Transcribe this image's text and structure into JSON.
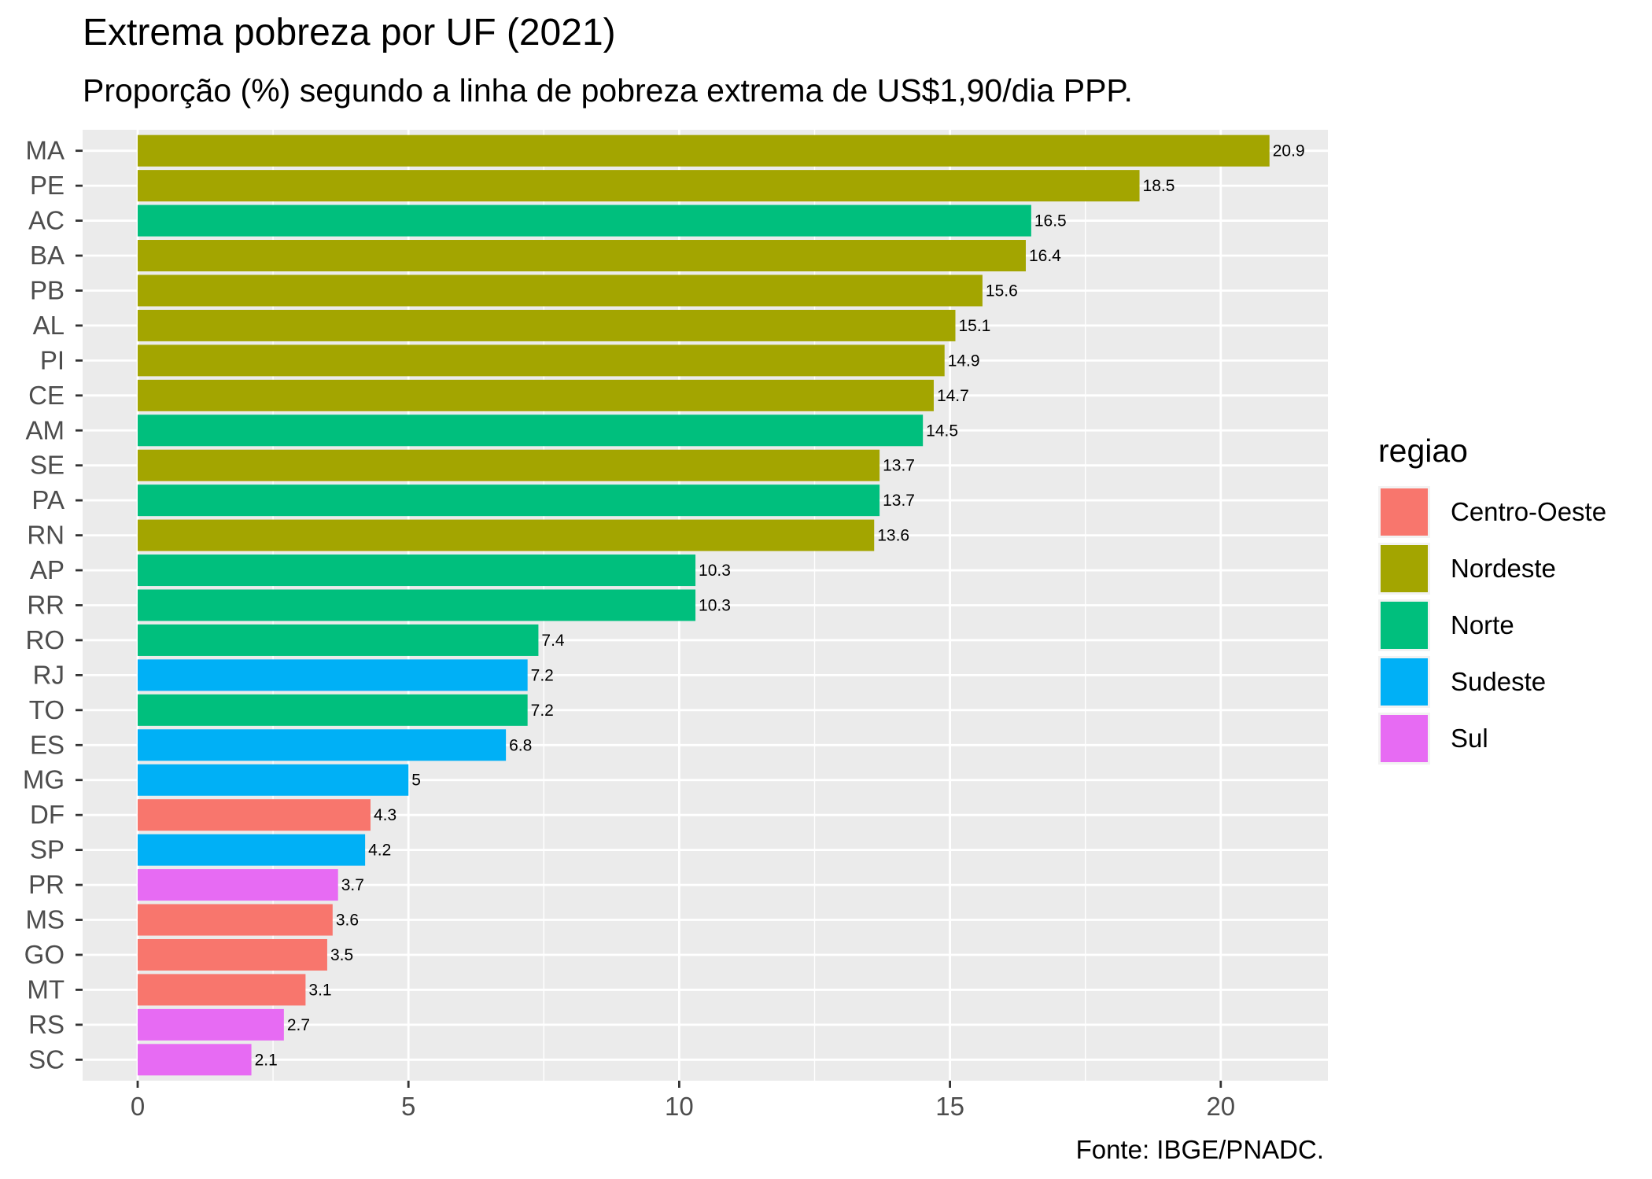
{
  "title": "Extrema pobreza por UF (2021)",
  "subtitle": "Proporção (%) segundo a linha de pobreza extrema de US$1,90/dia PPP.",
  "caption": "Fonte: IBGE/PNADC.",
  "legend": {
    "title": "regiao",
    "items": [
      {
        "label": "Centro-Oeste",
        "color": "#F8766D"
      },
      {
        "label": "Nordeste",
        "color": "#A3A500"
      },
      {
        "label": "Norte",
        "color": "#00BF7D"
      },
      {
        "label": "Sudeste",
        "color": "#00B0F6"
      },
      {
        "label": "Sul",
        "color": "#E76BF3"
      }
    ]
  },
  "chart_data": {
    "type": "bar",
    "orientation": "horizontal",
    "title": "Extrema pobreza por UF (2021)",
    "subtitle": "Proporção (%) segundo a linha de pobreza extrema de US$1,90/dia PPP.",
    "xlabel": "",
    "ylabel": "",
    "xlim": [
      0,
      21.95
    ],
    "x_ticks": [
      0,
      5,
      10,
      15,
      20
    ],
    "grid": true,
    "legend_position": "right",
    "categories": [
      "MA",
      "PE",
      "AC",
      "BA",
      "PB",
      "AL",
      "PI",
      "CE",
      "AM",
      "SE",
      "PA",
      "RN",
      "AP",
      "RR",
      "RO",
      "RJ",
      "TO",
      "ES",
      "MG",
      "DF",
      "SP",
      "PR",
      "MS",
      "GO",
      "MT",
      "RS",
      "SC"
    ],
    "values": [
      20.9,
      18.5,
      16.5,
      16.4,
      15.6,
      15.1,
      14.9,
      14.7,
      14.5,
      13.7,
      13.7,
      13.6,
      10.3,
      10.3,
      7.4,
      7.2,
      7.2,
      6.8,
      5,
      4.3,
      4.2,
      3.7,
      3.6,
      3.5,
      3.1,
      2.7,
      2.1
    ],
    "value_labels": [
      "20.9",
      "18.5",
      "16.5",
      "16.4",
      "15.6",
      "15.1",
      "14.9",
      "14.7",
      "14.5",
      "13.7",
      "13.7",
      "13.6",
      "10.3",
      "10.3",
      "7.4",
      "7.2",
      "7.2",
      "6.8",
      "5",
      "4.3",
      "4.2",
      "3.7",
      "3.6",
      "3.5",
      "3.1",
      "2.7",
      "2.1"
    ],
    "regions": [
      "Nordeste",
      "Nordeste",
      "Norte",
      "Nordeste",
      "Nordeste",
      "Nordeste",
      "Nordeste",
      "Nordeste",
      "Norte",
      "Nordeste",
      "Norte",
      "Nordeste",
      "Norte",
      "Norte",
      "Norte",
      "Sudeste",
      "Norte",
      "Sudeste",
      "Sudeste",
      "Centro-Oeste",
      "Sudeste",
      "Sul",
      "Centro-Oeste",
      "Centro-Oeste",
      "Centro-Oeste",
      "Sul",
      "Sul"
    ],
    "colors": {
      "Centro-Oeste": "#F8766D",
      "Nordeste": "#A3A500",
      "Norte": "#00BF7D",
      "Sudeste": "#00B0F6",
      "Sul": "#E76BF3"
    }
  }
}
